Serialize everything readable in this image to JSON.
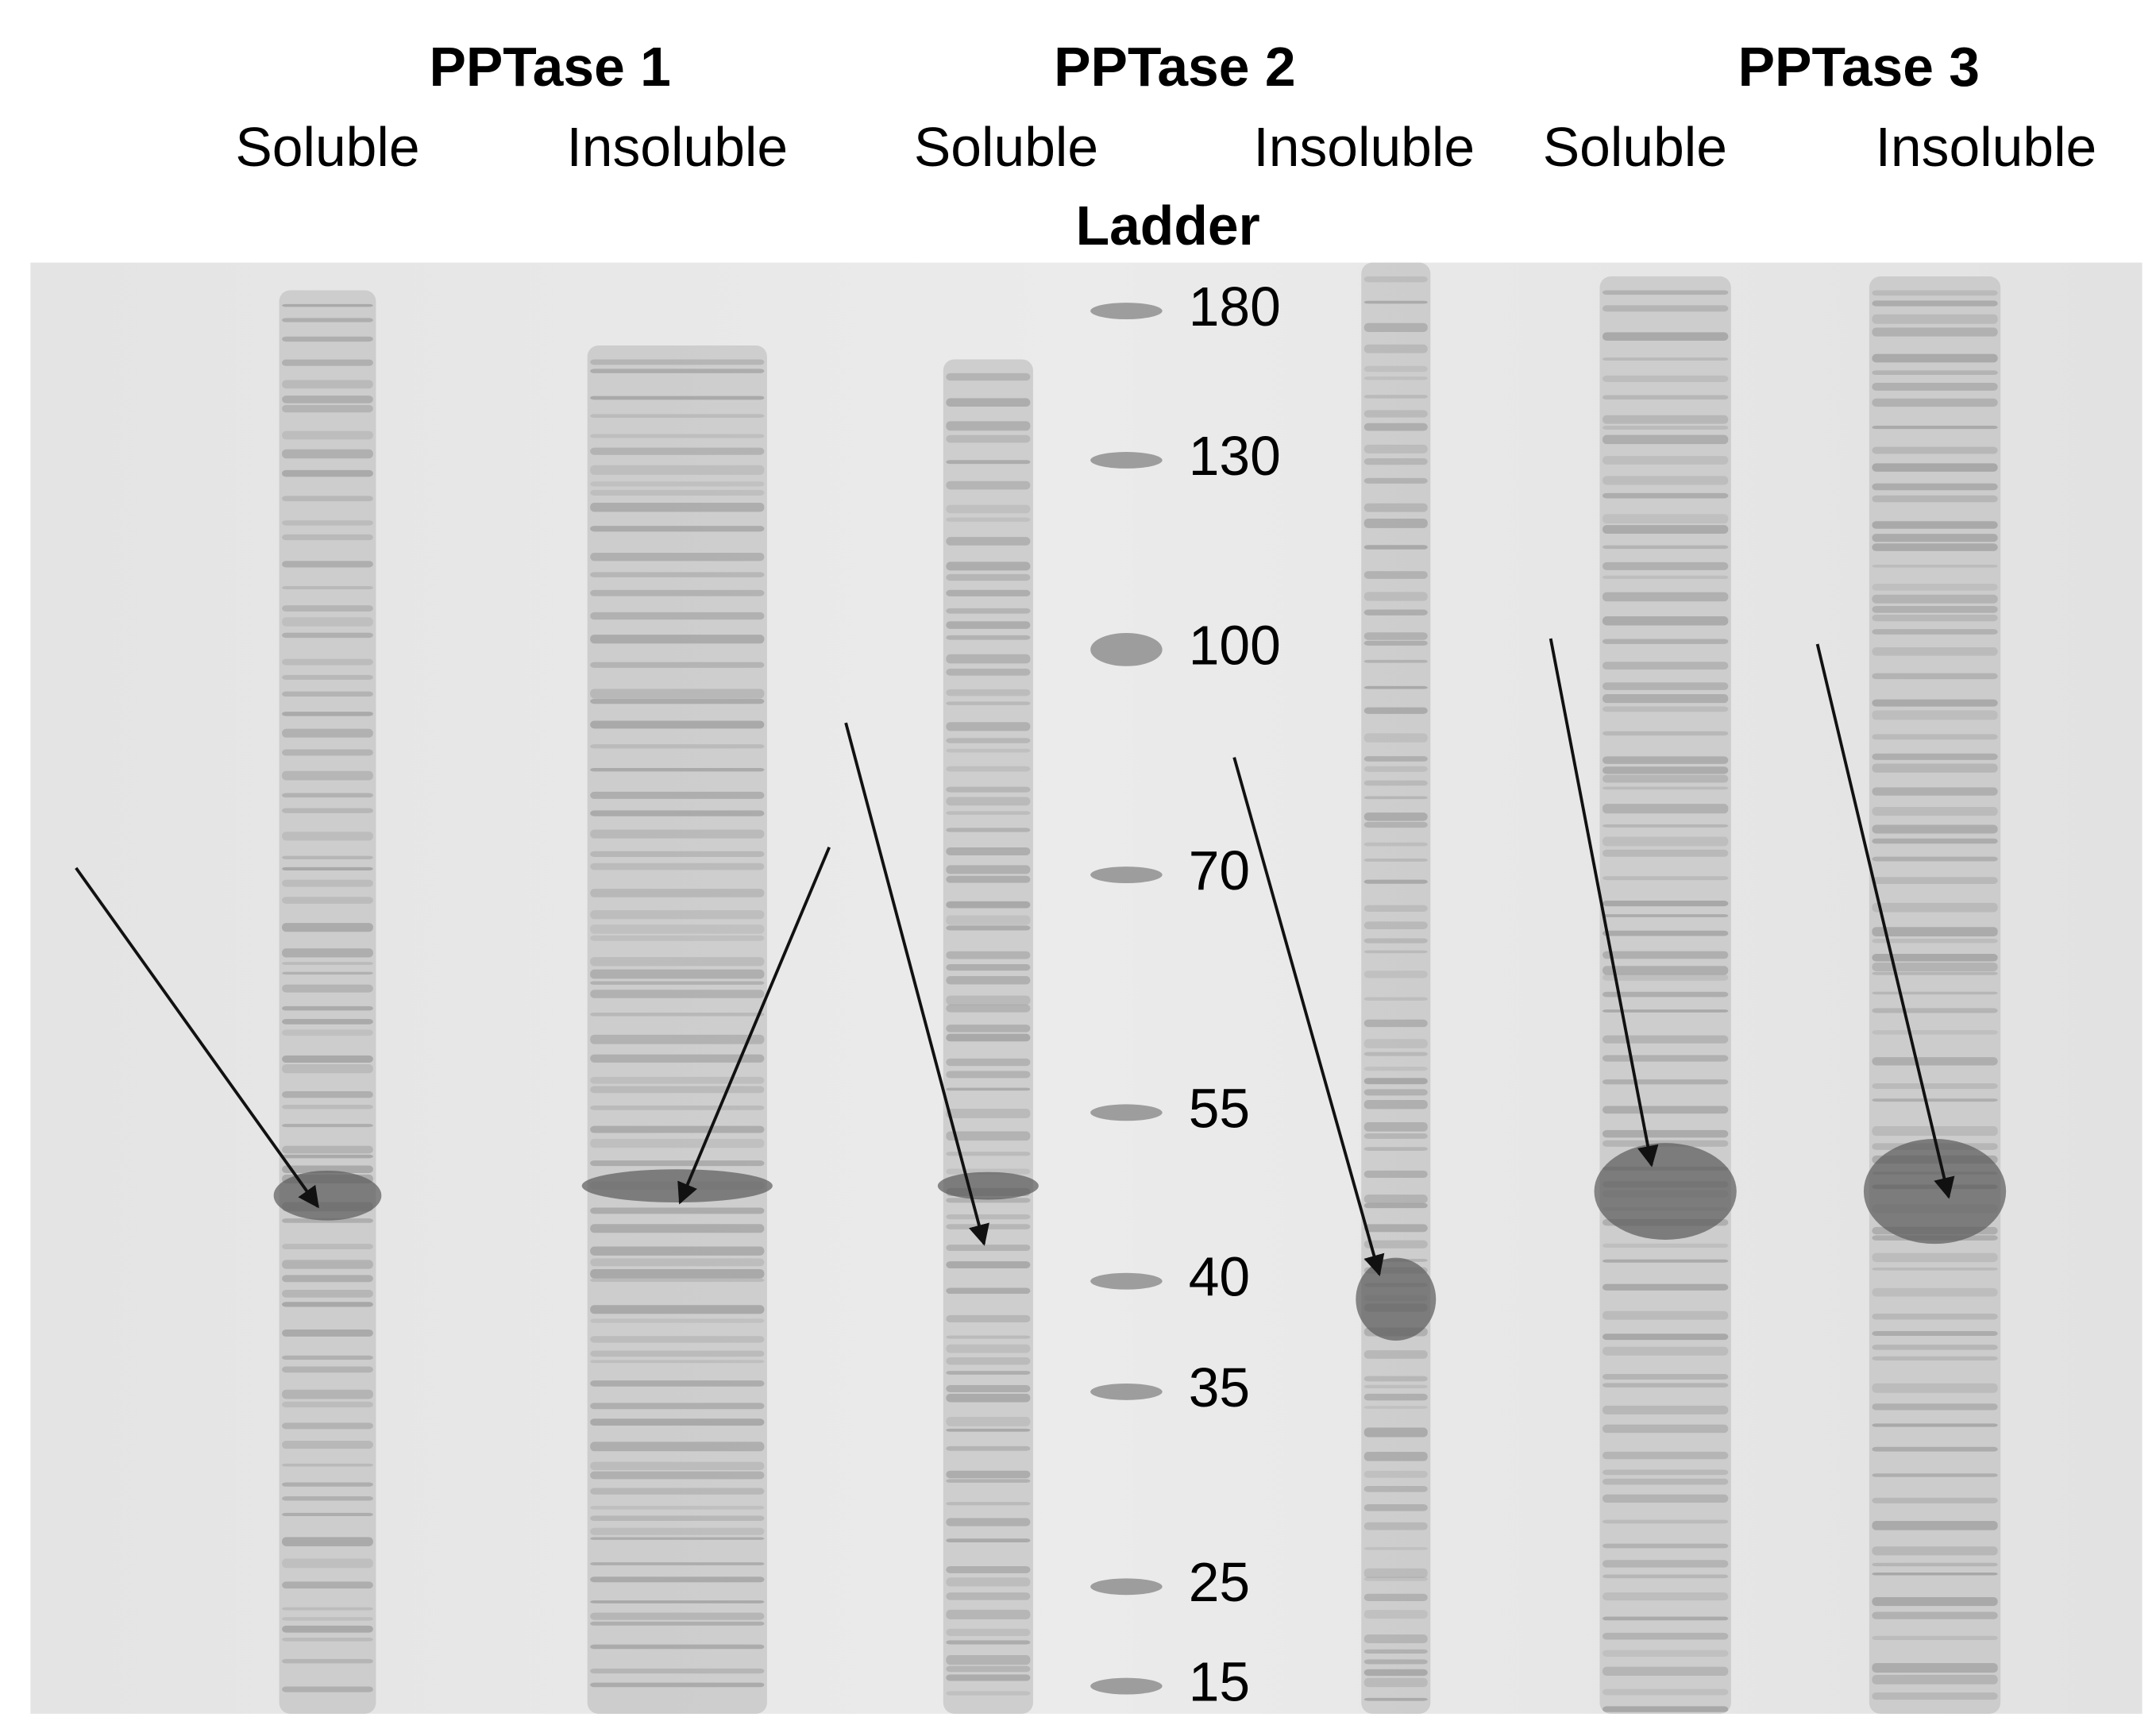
{
  "groups": [
    {
      "title": "PPTase 1",
      "lanes": [
        "Soluble",
        "Insoluble"
      ]
    },
    {
      "title": "PPTase 2",
      "lanes": [
        "Soluble",
        "Insoluble"
      ]
    },
    {
      "title": "PPTase 3",
      "lanes": [
        "Soluble",
        "Insoluble"
      ]
    }
  ],
  "ladder": {
    "title": "Ladder",
    "markers": [
      180,
      130,
      100,
      70,
      55,
      40,
      35,
      25,
      15
    ]
  }
}
